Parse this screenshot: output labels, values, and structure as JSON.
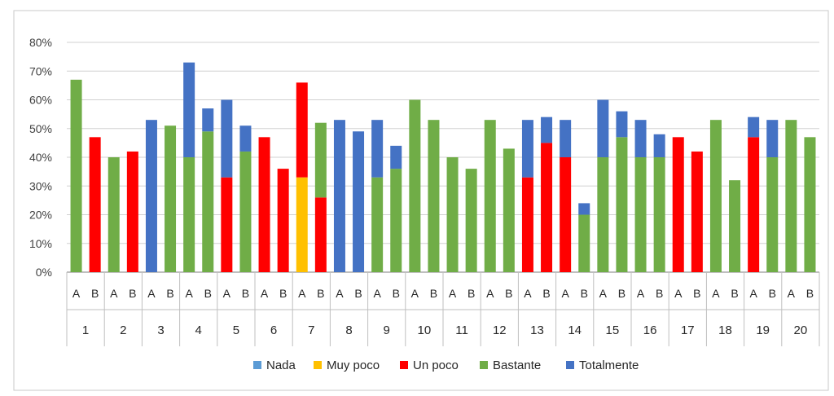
{
  "chart_data": {
    "type": "bar",
    "stacked": true,
    "ylim": [
      0,
      80
    ],
    "yticks": [
      0,
      10,
      20,
      30,
      40,
      50,
      60,
      70,
      80
    ],
    "ytick_format": "%",
    "grid": true,
    "legend_position": "bottom",
    "groups": [
      "1",
      "2",
      "3",
      "4",
      "5",
      "6",
      "7",
      "8",
      "9",
      "10",
      "11",
      "12",
      "13",
      "14",
      "15",
      "16",
      "17",
      "18",
      "19",
      "20"
    ],
    "subcategories": [
      "A",
      "B"
    ],
    "legend": [
      {
        "name": "Nada",
        "color": "#5b9bd5"
      },
      {
        "name": "Muy poco",
        "color": "#ffc000"
      },
      {
        "name": "Un poco",
        "color": "#ff0000"
      },
      {
        "name": "Bastante",
        "color": "#70ad47"
      },
      {
        "name": "Totalmente",
        "color": "#4472c4"
      }
    ],
    "series": [
      {
        "name": "Nada",
        "color": "#5b9bd5",
        "values": [
          0,
          0,
          0,
          0,
          0,
          0,
          0,
          0,
          0,
          0,
          0,
          0,
          0,
          0,
          0,
          0,
          0,
          0,
          0,
          0,
          0,
          0,
          0,
          0,
          0,
          0,
          0,
          0,
          0,
          0,
          0,
          0,
          0,
          0,
          0,
          0,
          0,
          0,
          0,
          0
        ]
      },
      {
        "name": "Muy poco",
        "color": "#ffc000",
        "values": [
          0,
          0,
          0,
          0,
          0,
          0,
          0,
          0,
          0,
          0,
          0,
          0,
          33,
          0,
          0,
          0,
          0,
          0,
          0,
          0,
          0,
          0,
          0,
          0,
          0,
          0,
          0,
          0,
          0,
          0,
          0,
          0,
          0,
          0,
          0,
          0,
          0,
          0,
          0,
          0
        ]
      },
      {
        "name": "Un poco",
        "color": "#ff0000",
        "values": [
          0,
          47,
          0,
          42,
          0,
          0,
          0,
          0,
          33,
          0,
          47,
          36,
          33,
          26,
          0,
          0,
          0,
          0,
          0,
          0,
          0,
          0,
          0,
          0,
          33,
          45,
          40,
          0,
          0,
          0,
          0,
          0,
          47,
          42,
          0,
          0,
          47,
          0,
          0,
          0
        ]
      },
      {
        "name": "Bastante",
        "color": "#70ad47",
        "values": [
          67,
          0,
          40,
          0,
          0,
          51,
          40,
          49,
          0,
          42,
          0,
          0,
          0,
          26,
          0,
          0,
          33,
          36,
          60,
          53,
          40,
          36,
          53,
          43,
          0,
          0,
          0,
          20,
          40,
          47,
          40,
          40,
          0,
          0,
          53,
          32,
          0,
          40,
          53,
          47
        ]
      },
      {
        "name": "Totalmente",
        "color": "#4472c4",
        "values": [
          0,
          0,
          0,
          0,
          53,
          0,
          33,
          8,
          27,
          9,
          0,
          0,
          0,
          0,
          53,
          49,
          20,
          8,
          0,
          0,
          0,
          0,
          0,
          0,
          20,
          9,
          13,
          4,
          20,
          9,
          13,
          8,
          0,
          0,
          0,
          0,
          7,
          13,
          0,
          0
        ]
      }
    ]
  }
}
